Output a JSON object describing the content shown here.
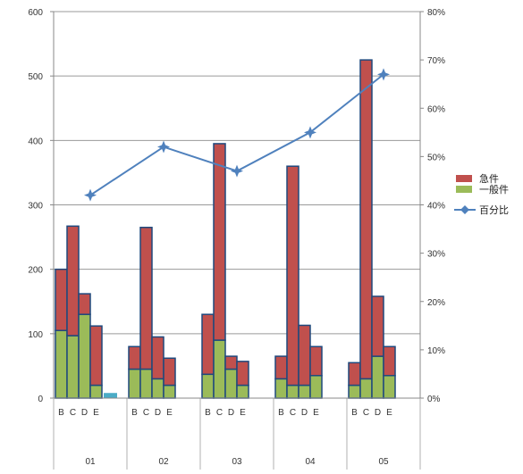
{
  "chart_data": {
    "type": "bar",
    "title": "",
    "xlabel": "",
    "ylabel": "",
    "ylim": [
      0,
      600
    ],
    "y2lim": [
      0,
      0.8
    ],
    "y_ticks": [
      "0",
      "100",
      "200",
      "300",
      "400",
      "500",
      "600"
    ],
    "y2_ticks": [
      "0%",
      "10%",
      "20%",
      "30%",
      "40%",
      "50%",
      "60%",
      "70%",
      "80%"
    ],
    "groups": [
      "01",
      "02",
      "03",
      "04",
      "05"
    ],
    "subcategories": [
      "B",
      "C",
      "D",
      "E"
    ],
    "gridlines": true,
    "legend_position": "right",
    "series": [
      {
        "name": "急件",
        "color": "#C0504D",
        "values": [
          [
            95,
            170,
            32,
            92
          ],
          [
            35,
            220,
            65,
            42
          ],
          [
            93,
            305,
            20,
            37
          ],
          [
            35,
            340,
            93,
            45
          ],
          [
            35,
            495,
            93,
            45
          ]
        ]
      },
      {
        "name": "一般件",
        "color": "#9BBB59",
        "values": [
          [
            105,
            97,
            130,
            20
          ],
          [
            45,
            45,
            30,
            20
          ],
          [
            37,
            90,
            45,
            20
          ],
          [
            30,
            20,
            20,
            35
          ],
          [
            20,
            30,
            65,
            35
          ]
        ]
      }
    ],
    "extra_bar": {
      "group": "01",
      "value": 8,
      "color": "#4BACC6"
    },
    "line_series": {
      "name": "百分比",
      "color": "#4F81BD",
      "values": [
        0.42,
        0.52,
        0.47,
        0.55,
        0.67
      ]
    }
  }
}
